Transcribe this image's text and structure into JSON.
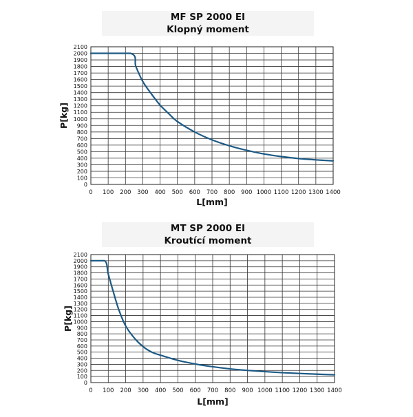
{
  "chart_data": [
    {
      "type": "line",
      "title": "MF SP 2000 EI",
      "subtitle": "Klopný moment",
      "xlabel": "L[mm]",
      "ylabel": "P[kg]",
      "xlim": [
        0,
        1400
      ],
      "ylim": [
        0,
        2100
      ],
      "xticks": [
        "0",
        "100",
        "200",
        "300",
        "400",
        "500",
        "600",
        "700",
        "800",
        "900",
        "1000",
        "1100",
        "1200",
        "1300",
        "1400"
      ],
      "yticks": [
        "0",
        "100",
        "200",
        "300",
        "400",
        "500",
        "600",
        "700",
        "800",
        "900",
        "1000",
        "1100",
        "1200",
        "1300",
        "1400",
        "1500",
        "1600",
        "1700",
        "1800",
        "1900",
        "2000",
        "2100"
      ],
      "grid": true,
      "line_color": "#1d5a85",
      "series": [
        {
          "x": [
            0,
            230,
            260,
            300,
            350,
            400,
            450,
            500,
            600,
            700,
            800,
            900,
            1000,
            1100,
            1200,
            1300,
            1400
          ],
          "y": [
            2000,
            2000,
            1800,
            1570,
            1380,
            1210,
            1080,
            960,
            800,
            680,
            590,
            520,
            465,
            425,
            395,
            375,
            360
          ]
        }
      ]
    },
    {
      "type": "line",
      "title": "MT SP 2000 EI",
      "subtitle": "Kroutící moment",
      "xlabel": "L[mm]",
      "ylabel": "P[kg]",
      "xlim": [
        0,
        1400
      ],
      "ylim": [
        0,
        2100
      ],
      "xticks": [
        "0",
        "100",
        "200",
        "300",
        "400",
        "500",
        "600",
        "700",
        "800",
        "900",
        "1000",
        "1100",
        "1200",
        "1300",
        "1400"
      ],
      "yticks": [
        "0",
        "100",
        "200",
        "300",
        "400",
        "500",
        "600",
        "700",
        "800",
        "900",
        "1000",
        "1100",
        "1200",
        "1300",
        "1400",
        "1500",
        "1600",
        "1700",
        "1800",
        "1900",
        "2000",
        "2100"
      ],
      "grid": true,
      "line_color": "#1d5a85",
      "series": [
        {
          "x": [
            0,
            80,
            100,
            130,
            160,
            200,
            250,
            300,
            350,
            400,
            500,
            600,
            700,
            800,
            900,
            1000,
            1100,
            1200,
            1300,
            1400
          ],
          "y": [
            2000,
            2000,
            1780,
            1480,
            1200,
            930,
            730,
            590,
            500,
            450,
            365,
            305,
            260,
            225,
            200,
            180,
            163,
            150,
            138,
            128
          ]
        }
      ]
    }
  ]
}
